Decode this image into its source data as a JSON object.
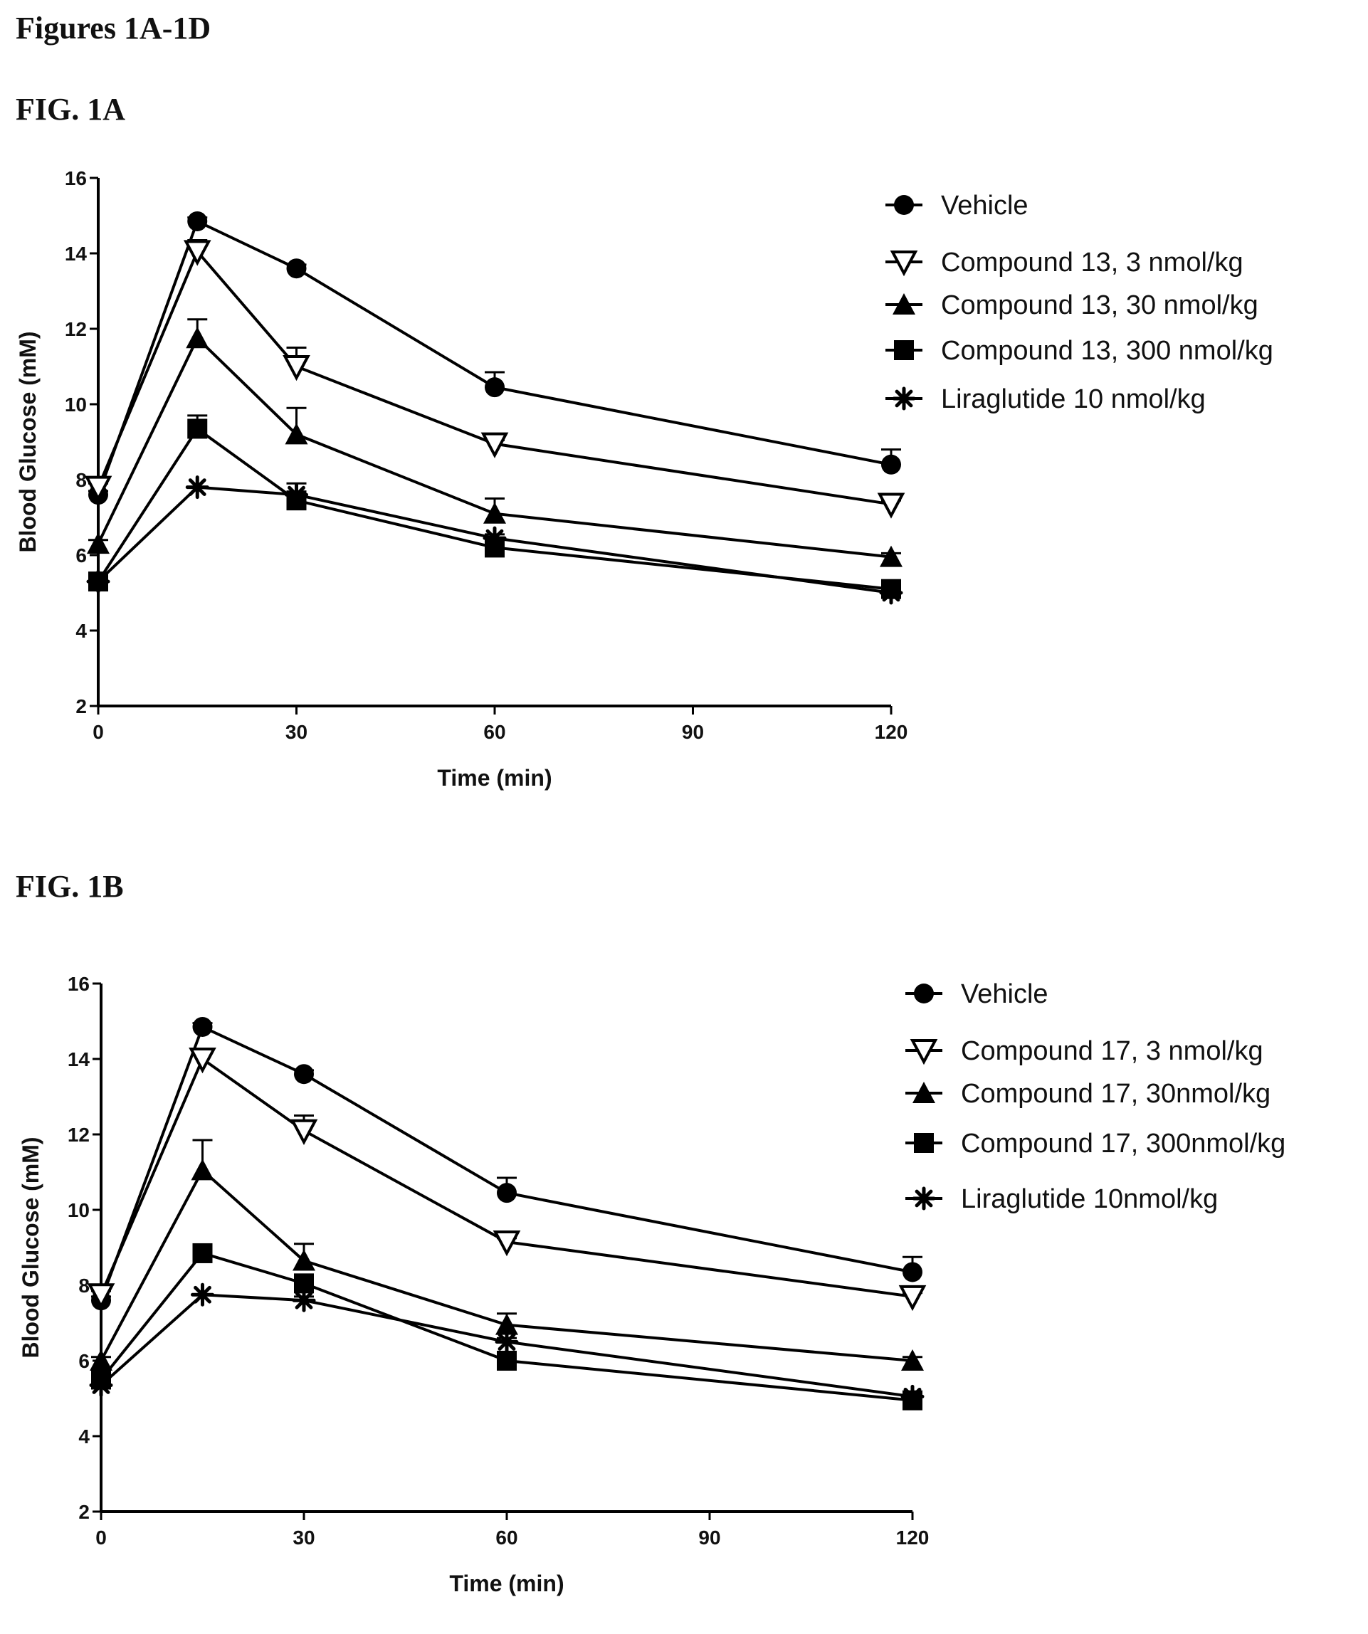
{
  "page": {
    "title": "Figures 1A-1D"
  },
  "chart_data": [
    {
      "id": "A",
      "fig_label": "FIG. 1A",
      "type": "line",
      "xlabel": "Time (min)",
      "ylabel": "Blood Glucose (mM)",
      "xlim": [
        0,
        120
      ],
      "ylim": [
        2,
        16
      ],
      "xticks": [
        0,
        30,
        60,
        90,
        120
      ],
      "yticks": [
        2,
        4,
        6,
        8,
        10,
        12,
        14,
        16
      ],
      "grid": false,
      "legend_position": "top-right",
      "x": [
        0,
        15,
        30,
        60,
        120
      ],
      "series": [
        {
          "name": "Vehicle",
          "marker": "circle",
          "values": [
            7.6,
            14.85,
            13.6,
            10.45,
            8.4
          ],
          "errors": [
            0.1,
            0.1,
            0.1,
            0.4,
            0.4
          ]
        },
        {
          "name": "Compound 13, 3 nmol/kg",
          "marker": "triangle-down-open",
          "values": [
            7.8,
            14.05,
            11.0,
            8.95,
            7.35
          ],
          "errors": [
            0.1,
            0.3,
            0.5,
            0.1,
            0.1
          ]
        },
        {
          "name": "Compound 13, 30 nmol/kg",
          "marker": "triangle-up",
          "values": [
            6.3,
            11.75,
            9.2,
            7.1,
            5.95
          ],
          "errors": [
            0.1,
            0.5,
            0.7,
            0.4,
            0.1
          ]
        },
        {
          "name": "Compound 13, 300 nmol/kg",
          "marker": "square",
          "values": [
            5.3,
            9.35,
            7.45,
            6.2,
            5.1
          ],
          "errors": [
            0.1,
            0.35,
            0.1,
            0.1,
            0.1
          ]
        },
        {
          "name": "Liraglutide 10 nmol/kg",
          "marker": "asterisk",
          "values": [
            5.3,
            7.8,
            7.6,
            6.45,
            5.0
          ],
          "errors": [
            0.0,
            0.0,
            0.3,
            0.1,
            0.1
          ]
        }
      ]
    },
    {
      "id": "B",
      "fig_label": "FIG. 1B",
      "type": "line",
      "xlabel": "Time (min)",
      "ylabel": "Blood Glucose (mM)",
      "xlim": [
        0,
        120
      ],
      "ylim": [
        2,
        16
      ],
      "xticks": [
        0,
        30,
        60,
        90,
        120
      ],
      "yticks": [
        2,
        4,
        6,
        8,
        10,
        12,
        14,
        16
      ],
      "grid": false,
      "legend_position": "top-right",
      "x": [
        0,
        15,
        30,
        60,
        120
      ],
      "series": [
        {
          "name": "Vehicle",
          "marker": "circle",
          "values": [
            7.6,
            14.85,
            13.6,
            10.45,
            8.35
          ],
          "errors": [
            0.1,
            0.1,
            0.1,
            0.4,
            0.4
          ]
        },
        {
          "name": "Compound 17, 3 nmol/kg",
          "marker": "triangle-down-open",
          "values": [
            7.75,
            14.0,
            12.1,
            9.15,
            7.7
          ],
          "errors": [
            0.1,
            0.2,
            0.4,
            0.1,
            0.1
          ]
        },
        {
          "name": "Compound 17, 30nmol/kg",
          "marker": "triangle-up",
          "values": [
            6.0,
            11.05,
            8.65,
            6.95,
            6.0
          ],
          "errors": [
            0.1,
            0.8,
            0.45,
            0.3,
            0.1
          ]
        },
        {
          "name": "Compound 17, 300nmol/kg",
          "marker": "square",
          "values": [
            5.5,
            8.85,
            8.05,
            6.0,
            4.95
          ],
          "errors": [
            0.1,
            0.1,
            0.1,
            0.1,
            0.1
          ]
        },
        {
          "name": "Liraglutide 10nmol/kg",
          "marker": "asterisk",
          "values": [
            5.35,
            7.75,
            7.6,
            6.5,
            5.05
          ],
          "errors": [
            0.0,
            0.0,
            0.1,
            0.1,
            0.1
          ]
        }
      ]
    }
  ]
}
